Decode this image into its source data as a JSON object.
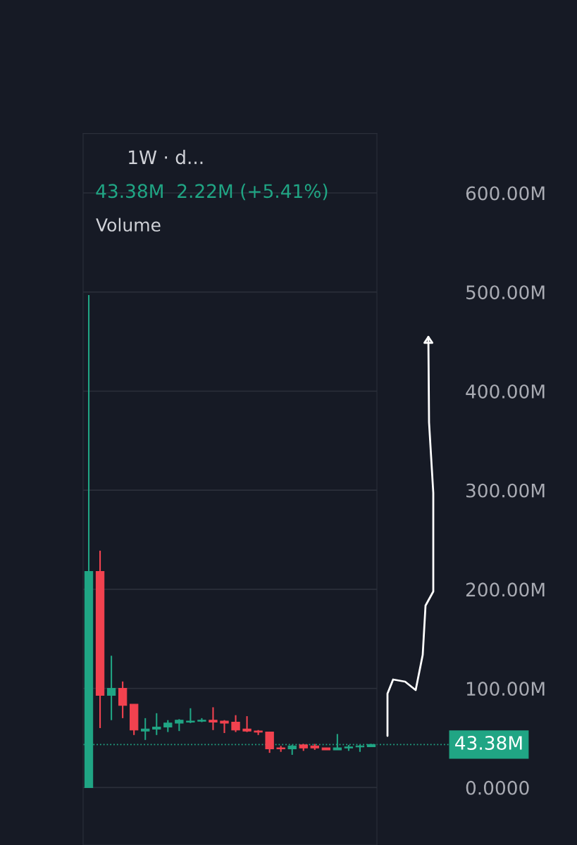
{
  "chart_data": {
    "type": "candlestick",
    "annotations": [
      "1W · d...",
      "43.38M  2.22M (+5.41%)",
      "Volume"
    ],
    "categories": [
      null,
      null,
      null,
      null,
      null,
      null,
      null,
      null,
      null,
      null,
      null,
      null,
      null,
      null,
      null,
      null,
      null,
      null,
      null,
      null,
      null,
      null,
      null,
      null,
      null,
      null
    ],
    "ohlc": [
      [
        0,
        497,
        0,
        218
      ],
      [
        218,
        239,
        60,
        93
      ],
      [
        93,
        133,
        68,
        100
      ],
      [
        100,
        107,
        70,
        83
      ],
      [
        84,
        84,
        53,
        58
      ],
      [
        57,
        70,
        48,
        59
      ],
      [
        59,
        75,
        53,
        61
      ],
      [
        61,
        68,
        56,
        65
      ],
      [
        65,
        69,
        57,
        68
      ],
      [
        66,
        80,
        65,
        67
      ],
      [
        67,
        70,
        66,
        68
      ],
      [
        68,
        81,
        58,
        66
      ],
      [
        67,
        68,
        55,
        65
      ],
      [
        66,
        73,
        56,
        58
      ],
      [
        59,
        72,
        56,
        57
      ],
      [
        57,
        58,
        53,
        56
      ],
      [
        56,
        56,
        35,
        39
      ],
      [
        40,
        42,
        36,
        39
      ],
      [
        39,
        43,
        33,
        42
      ],
      [
        43,
        44,
        37,
        40
      ],
      [
        42,
        44,
        38,
        40
      ],
      [
        40,
        40,
        38,
        38
      ],
      [
        38,
        54,
        38,
        40
      ],
      [
        40,
        43,
        37,
        41
      ],
      [
        41,
        43,
        36,
        42
      ],
      [
        41.16,
        44,
        41,
        43.38
      ]
    ],
    "ylim": [
      -58,
      660
    ],
    "yticks": [
      {
        "value": 0,
        "label": "0.0000"
      },
      {
        "value": 100,
        "label": "100.00M"
      },
      {
        "value": 200,
        "label": "200.00M"
      },
      {
        "value": 300,
        "label": "300.00M"
      },
      {
        "value": 400,
        "label": "400.00M"
      },
      {
        "value": 500,
        "label": "500.00M"
      },
      {
        "value": 600,
        "label": "600.00M"
      }
    ],
    "grid": "y",
    "ref_lines": [
      {
        "axis": "y",
        "value": 43.38,
        "label": "43.38M",
        "color": "#20a584",
        "line_style": "dotted"
      }
    ]
  }
}
